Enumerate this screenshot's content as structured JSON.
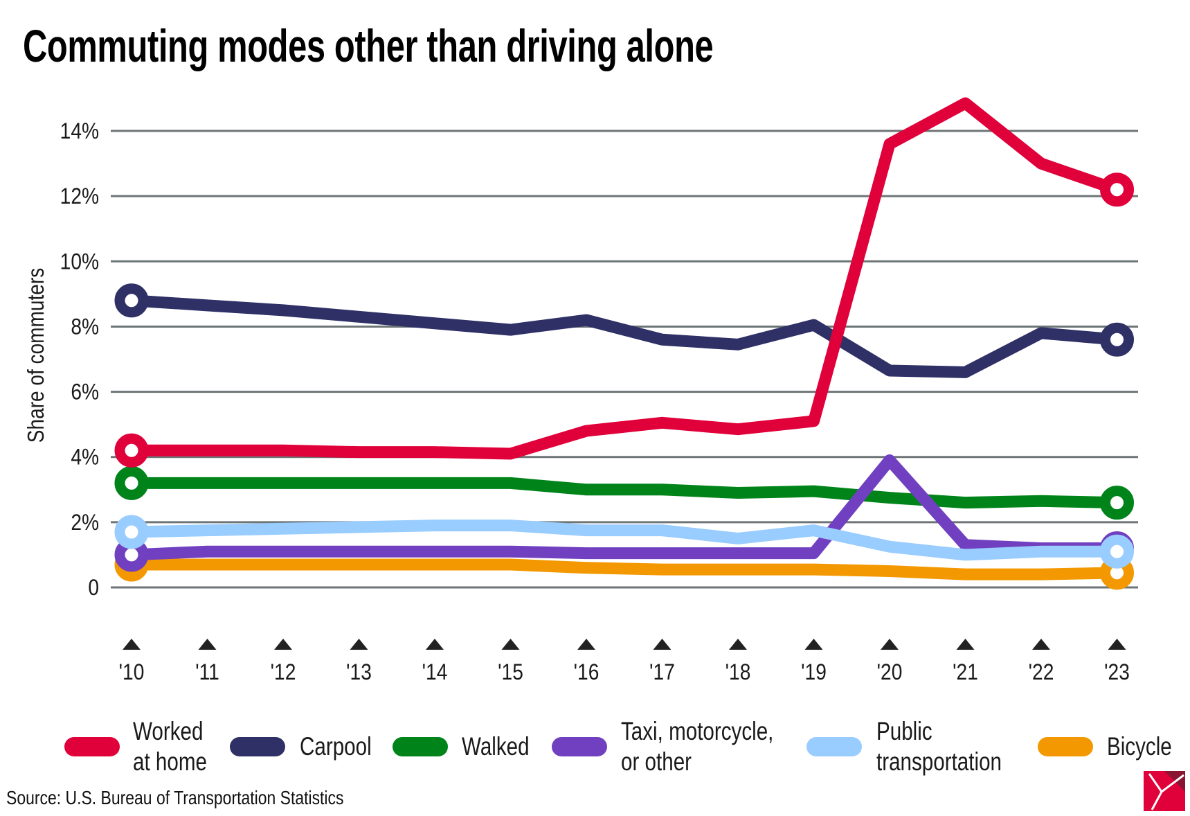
{
  "chart_data": {
    "type": "line",
    "title": "Commuting modes other than driving alone",
    "ylabel": "Share of commuters",
    "xlabel": "",
    "x": [
      "'10",
      "'11",
      "'12",
      "'13",
      "'14",
      "'15",
      "'16",
      "'17",
      "'18",
      "'19",
      "'20",
      "'21",
      "'22",
      "'23"
    ],
    "yticks": [
      "0",
      "2%",
      "4%",
      "6%",
      "8%",
      "10%",
      "12%",
      "14%"
    ],
    "ytick_values": [
      0,
      2,
      4,
      6,
      8,
      10,
      12,
      14
    ],
    "ylim": [
      0,
      14
    ],
    "grid": true,
    "legend_position": "bottom",
    "series": [
      {
        "name": "Bicycle",
        "color": "#f39800",
        "values": [
          0.7,
          0.7,
          0.7,
          0.7,
          0.7,
          0.7,
          0.6,
          0.55,
          0.55,
          0.55,
          0.5,
          0.4,
          0.4,
          0.45
        ]
      },
      {
        "name": "Walked",
        "color": "#00841a",
        "values": [
          3.2,
          3.2,
          3.2,
          3.2,
          3.2,
          3.2,
          3.0,
          3.0,
          2.9,
          2.95,
          2.75,
          2.6,
          2.65,
          2.6
        ]
      },
      {
        "name": "Taxi, motorcycle,\nor other",
        "color": "#7040c0",
        "values": [
          1.0,
          1.1,
          1.1,
          1.1,
          1.1,
          1.1,
          1.05,
          1.05,
          1.05,
          1.05,
          3.9,
          1.3,
          1.2,
          1.2
        ]
      },
      {
        "name": "Public\ntransportation",
        "color": "#99ccff",
        "values": [
          1.7,
          1.75,
          1.8,
          1.85,
          1.9,
          1.9,
          1.75,
          1.75,
          1.5,
          1.75,
          1.25,
          1.0,
          1.1,
          1.1
        ]
      },
      {
        "name": "Carpool",
        "color": "#2e3066",
        "values": [
          8.8,
          8.65,
          8.5,
          8.3,
          8.1,
          7.9,
          8.2,
          7.6,
          7.45,
          8.05,
          6.65,
          6.6,
          7.8,
          7.6
        ]
      },
      {
        "name": "Worked\nat home",
        "color": "#e0003a",
        "values": [
          4.2,
          4.2,
          4.2,
          4.15,
          4.15,
          4.1,
          4.8,
          5.05,
          4.85,
          5.1,
          13.6,
          14.85,
          13.0,
          12.2
        ]
      }
    ],
    "legend_order": [
      5,
      4,
      1,
      2,
      3,
      0
    ],
    "grid_color": "#6e7577"
  },
  "source": "Source: U.S. Bureau of Transportation Statistics",
  "logo_colors": {
    "red": "#e0003a",
    "dark": "#8a1530"
  }
}
